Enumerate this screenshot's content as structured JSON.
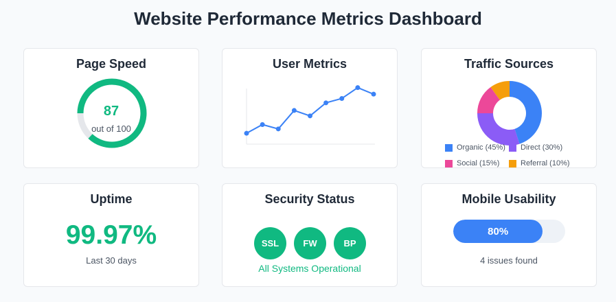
{
  "header": {
    "title": "Website Performance Metrics Dashboard"
  },
  "colors": {
    "success": "#10b981",
    "primary": "#3b82f6",
    "track": "#e5e7eb",
    "direct": "#8b5cf6",
    "social": "#ec4899",
    "referral": "#f59e0b"
  },
  "page_speed": {
    "title": "Page Speed",
    "score": "87",
    "score_value": 87,
    "max": 100,
    "subtitle": "out of 100"
  },
  "user_metrics": {
    "title": "User Metrics",
    "chart_data": {
      "type": "line",
      "title": "",
      "xlabel": "",
      "ylabel": "",
      "x": [
        1,
        2,
        3,
        4,
        5,
        6,
        7,
        8,
        9
      ],
      "values": [
        10,
        18,
        14,
        31,
        26,
        38,
        42,
        52,
        46
      ],
      "ylim": [
        0,
        60
      ],
      "grid": false
    }
  },
  "traffic_sources": {
    "title": "Traffic Sources",
    "chart_data": {
      "type": "pie",
      "title": "",
      "legend": "bottom",
      "slices": [
        {
          "label": "Organic (45%)",
          "value": 45,
          "color": "#3b82f6"
        },
        {
          "label": "Direct (30%)",
          "value": 30,
          "color": "#8b5cf6"
        },
        {
          "label": "Social (15%)",
          "value": 15,
          "color": "#ec4899"
        },
        {
          "label": "Referral (10%)",
          "value": 10,
          "color": "#f59e0b"
        }
      ]
    }
  },
  "uptime": {
    "title": "Uptime",
    "value": "99.97%",
    "subtitle": "Last 30 days"
  },
  "security": {
    "title": "Security Status",
    "badges": [
      "SSL",
      "FW",
      "BP"
    ],
    "status": "All Systems Operational"
  },
  "mobile": {
    "title": "Mobile Usability",
    "percent_label": "80%",
    "percent": 80,
    "subtitle": "4 issues found"
  }
}
